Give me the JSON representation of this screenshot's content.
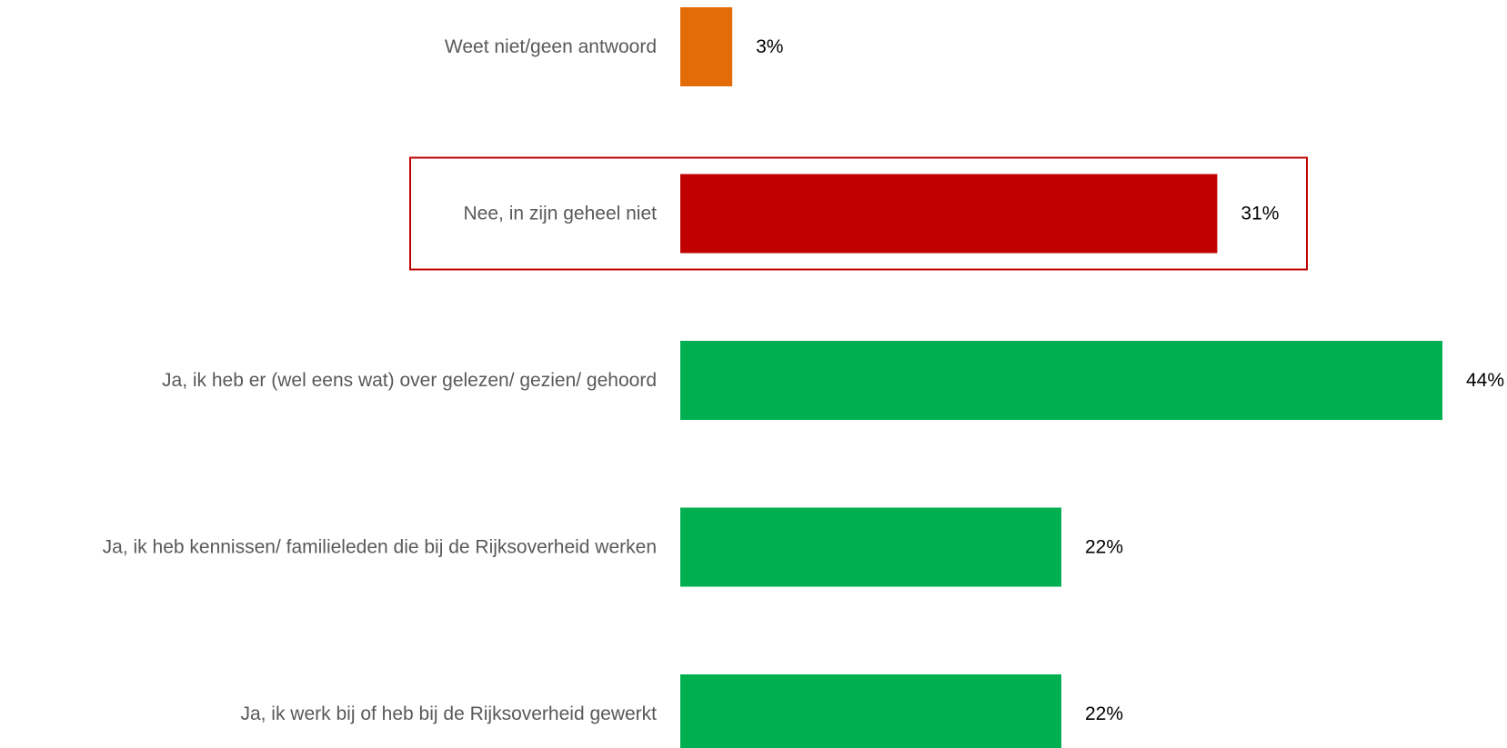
{
  "chart_data": {
    "type": "bar",
    "orientation": "horizontal",
    "categories": [
      "Weet niet/geen antwoord",
      "Nee, in zijn geheel niet",
      "Ja, ik heb er (wel eens wat) over gelezen/ gezien/ gehoord",
      "Ja, ik heb kennissen/ familieleden die bij de Rijksoverheid werken",
      "Ja, ik werk bij of heb bij de Rijksoverheid gewerkt"
    ],
    "values": [
      3,
      31,
      44,
      22,
      22
    ],
    "value_labels": [
      "3%",
      "31%",
      "44%",
      "22%",
      "22%"
    ],
    "colors": [
      "#E36C09",
      "#C00000",
      "#00B050",
      "#00B050",
      "#00B050"
    ],
    "highlighted_category": "Nee, in zijn geheel niet",
    "highlight_color": "#C00000",
    "unit": "%",
    "xlim": [
      0,
      44
    ],
    "grid": false,
    "legend": "none"
  }
}
